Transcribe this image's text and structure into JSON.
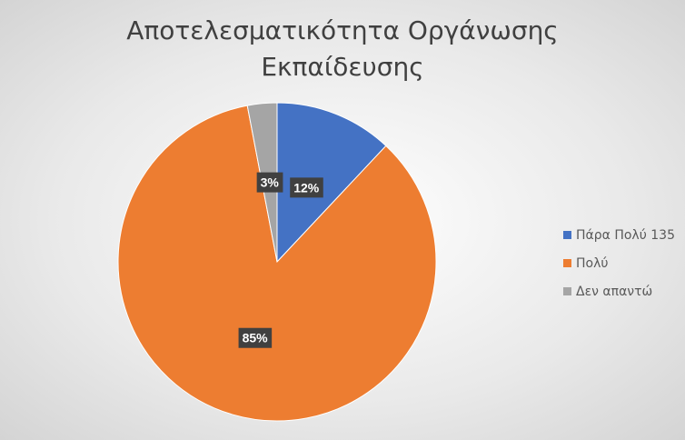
{
  "chart_data": {
    "type": "pie",
    "title": "Αποτελεσματικότητα Οργάνωσης Εκπαίδευσης",
    "categories": [
      "Πάρα Πολύ 135",
      "Πολύ",
      "Δεν απαντώ"
    ],
    "values": [
      12,
      85,
      3
    ],
    "value_labels": [
      "12%",
      "85%",
      "3%"
    ],
    "colors": [
      "#4472c4",
      "#ed7d31",
      "#a5a5a5"
    ],
    "legend": "right"
  }
}
